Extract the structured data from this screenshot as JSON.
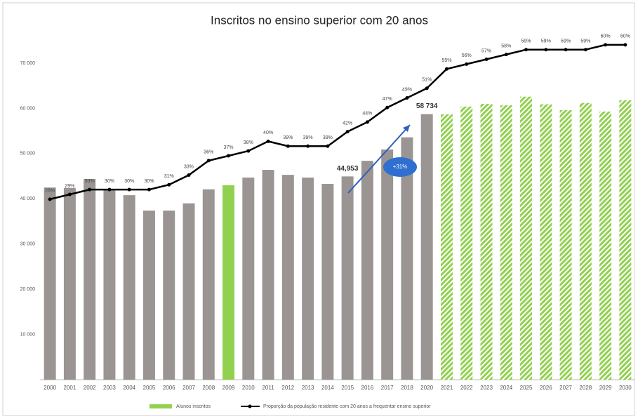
{
  "chart_data": {
    "type": "bar",
    "title": "Inscritos no ensino superior com 20 anos",
    "annotation": "+31%",
    "categories": [
      "2000",
      "2001",
      "2002",
      "2003",
      "2004",
      "2005",
      "2006",
      "2007",
      "2008",
      "2009",
      "2010",
      "2011",
      "2012",
      "2013",
      "2014",
      "2015",
      "2016",
      "2017",
      "2018",
      "2020",
      "2021",
      "2022",
      "2023",
      "2024",
      "2025",
      "2026",
      "2027",
      "2028",
      "2029",
      "2030"
    ],
    "ylim": [
      0,
      70000
    ],
    "yticks": [
      {
        "value": 10000,
        "label": "10 000"
      },
      {
        "value": 20000,
        "label": "20 000"
      },
      {
        "value": 30000,
        "label": "30 000"
      },
      {
        "value": 40000,
        "label": "40 000"
      },
      {
        "value": 50000,
        "label": "50 000"
      },
      {
        "value": 60000,
        "label": "60 000"
      },
      {
        "value": 70000,
        "label": "70 000"
      }
    ],
    "y2lim": [
      -9.4,
      56.2
    ],
    "series": [
      {
        "name": "Alunos inscritos",
        "type": "bar",
        "color": "#92d050",
        "values": [
          42500,
          42400,
          44400,
          42100,
          40800,
          37400,
          37400,
          39000,
          42100,
          43000,
          44700,
          46400,
          45300,
          44700,
          43300,
          44953,
          48400,
          50900,
          53600,
          58734,
          58700,
          60400,
          61000,
          60700,
          62600,
          60900,
          59600,
          61200,
          59300,
          61800
        ],
        "value_labels": [
          null,
          null,
          null,
          null,
          null,
          null,
          null,
          null,
          null,
          null,
          null,
          null,
          null,
          null,
          null,
          "44,953",
          null,
          null,
          null,
          "58 734",
          null,
          null,
          null,
          null,
          null,
          null,
          null,
          null,
          null,
          null
        ],
        "colors": [
          "#9a9592",
          "#9a9592",
          "#9a9592",
          "#9a9592",
          "#9a9592",
          "#9a9592",
          "#9a9592",
          "#9a9592",
          "#9a9592",
          "#92d050",
          "#9a9592",
          "#9a9592",
          "#9a9592",
          "#9a9592",
          "#9a9592",
          "#9a9592",
          "#9a9592",
          "#9a9592",
          "#9a9592",
          "#9a9592",
          "#92d050",
          "#92d050",
          "#92d050",
          "#92d050",
          "#92d050",
          "#92d050",
          "#92d050",
          "#92d050",
          "#92d050",
          "#92d050"
        ],
        "hatched": [
          false,
          false,
          false,
          false,
          false,
          false,
          false,
          false,
          false,
          false,
          false,
          false,
          false,
          false,
          false,
          false,
          false,
          false,
          false,
          false,
          true,
          true,
          true,
          true,
          true,
          true,
          true,
          true,
          true,
          true
        ]
      },
      {
        "name": "Proporção da população residente com 20 anos a frequentar ensino superior",
        "type": "line",
        "axis": "y2",
        "color": "#000000",
        "values": [
          28,
          29,
          30,
          30,
          30,
          30,
          31,
          33,
          36,
          37,
          38,
          40,
          39,
          39,
          39,
          42,
          44,
          47,
          49,
          51,
          55,
          56,
          57,
          58,
          59,
          59,
          59,
          59,
          60,
          60
        ],
        "value_labels": [
          "28%",
          "29%",
          "30%",
          "30%",
          "30%",
          "30%",
          "31%",
          "33%",
          "36%",
          "37%",
          "38%",
          "40%",
          "39%",
          "39%",
          "39%",
          "42%",
          "44%",
          "47%",
          "49%",
          "51%",
          "55%",
          "56%",
          "57%",
          "58%",
          "59%",
          "59%",
          "59%",
          "59%",
          "60%",
          "60%"
        ]
      }
    ]
  }
}
